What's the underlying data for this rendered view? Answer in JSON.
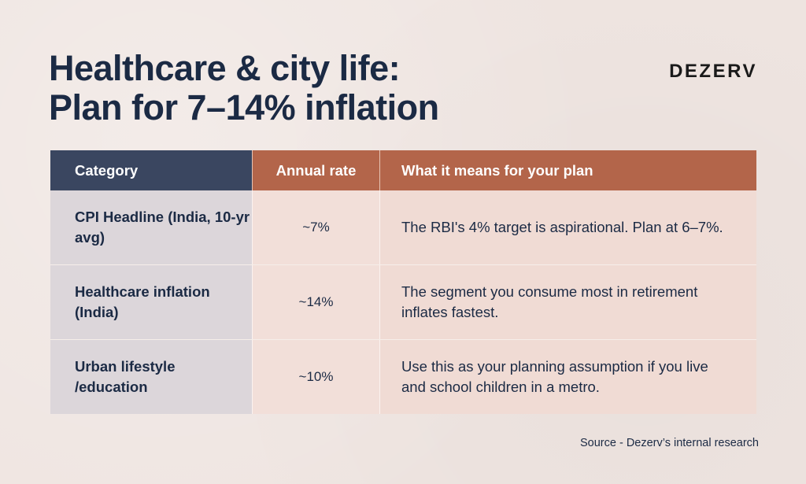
{
  "title": {
    "line1": "Healthcare & city life:",
    "line2": "Plan for 7–14% inflation"
  },
  "brand": "DEZERV",
  "table": {
    "headers": [
      "Category",
      "Annual rate",
      "What it means for your plan"
    ],
    "rows": [
      {
        "category": "CPI Headline (India, 10-yr avg)",
        "rate": "~7%",
        "meaning": "The RBI's 4% target is aspirational. Plan at 6–7%."
      },
      {
        "category": "Healthcare inflation (India)",
        "rate": "~14%",
        "meaning": "The segment you consume most in retirement inflates fastest."
      },
      {
        "category": "Urban lifestyle /education",
        "rate": "~10%",
        "meaning": "Use this as your planning assumption if you live and school children in a metro."
      }
    ]
  },
  "source": "Source - Dezerv’s internal research",
  "colors": {
    "background": "#efe5e1",
    "navy": "#1b2a44",
    "header_slate": "#3a4660",
    "header_rust": "#b3654a"
  }
}
